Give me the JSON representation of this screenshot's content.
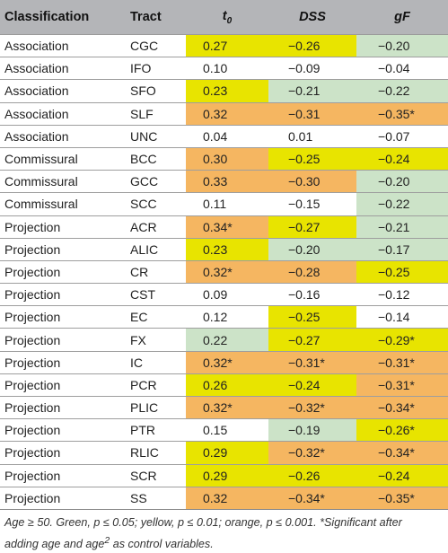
{
  "table": {
    "headers": [
      "Classification",
      "Tract",
      "t",
      "DSS",
      "gF"
    ],
    "header_t_subscript": "0",
    "rows": [
      {
        "classification": "Association",
        "tract": "CGC",
        "t0": "0.27",
        "t0_color": "yellow",
        "dss": "−0.26",
        "dss_color": "yellow",
        "gf": "−0.20",
        "gf_color": "green"
      },
      {
        "classification": "Association",
        "tract": "IFO",
        "t0": "0.10",
        "t0_color": "none",
        "dss": "−0.09",
        "dss_color": "none",
        "gf": "−0.04",
        "gf_color": "none"
      },
      {
        "classification": "Association",
        "tract": "SFO",
        "t0": "0.23",
        "t0_color": "yellow",
        "dss": "−0.21",
        "dss_color": "green",
        "gf": "−0.22",
        "gf_color": "green"
      },
      {
        "classification": "Association",
        "tract": "SLF",
        "t0": "0.32",
        "t0_color": "orange",
        "dss": "−0.31",
        "dss_color": "orange",
        "gf": "−0.35*",
        "gf_color": "orange"
      },
      {
        "classification": "Association",
        "tract": "UNC",
        "t0": "0.04",
        "t0_color": "none",
        "dss": "0.01",
        "dss_color": "none",
        "gf": "−0.07",
        "gf_color": "none"
      },
      {
        "classification": "Commissural",
        "tract": "BCC",
        "t0": "0.30",
        "t0_color": "orange",
        "dss": "−0.25",
        "dss_color": "yellow",
        "gf": "−0.24",
        "gf_color": "yellow"
      },
      {
        "classification": "Commissural",
        "tract": "GCC",
        "t0": "0.33",
        "t0_color": "orange",
        "dss": "−0.30",
        "dss_color": "orange",
        "gf": "−0.20",
        "gf_color": "green"
      },
      {
        "classification": "Commissural",
        "tract": "SCC",
        "t0": "0.11",
        "t0_color": "none",
        "dss": "−0.15",
        "dss_color": "none",
        "gf": "−0.22",
        "gf_color": "green"
      },
      {
        "classification": "Projection",
        "tract": "ACR",
        "t0": "0.34*",
        "t0_color": "orange",
        "dss": "−0.27",
        "dss_color": "yellow",
        "gf": "−0.21",
        "gf_color": "green"
      },
      {
        "classification": "Projection",
        "tract": "ALIC",
        "t0": "0.23",
        "t0_color": "yellow",
        "dss": "−0.20",
        "dss_color": "green",
        "gf": "−0.17",
        "gf_color": "green"
      },
      {
        "classification": "Projection",
        "tract": "CR",
        "t0": "0.32*",
        "t0_color": "orange",
        "dss": "−0.28",
        "dss_color": "orange",
        "gf": "−0.25",
        "gf_color": "yellow"
      },
      {
        "classification": "Projection",
        "tract": "CST",
        "t0": "0.09",
        "t0_color": "none",
        "dss": "−0.16",
        "dss_color": "none",
        "gf": "−0.12",
        "gf_color": "none"
      },
      {
        "classification": "Projection",
        "tract": "EC",
        "t0": "0.12",
        "t0_color": "none",
        "dss": "−0.25",
        "dss_color": "yellow",
        "gf": "−0.14",
        "gf_color": "none"
      },
      {
        "classification": "Projection",
        "tract": "FX",
        "t0": "0.22",
        "t0_color": "green",
        "dss": "−0.27",
        "dss_color": "yellow",
        "gf": "−0.29*",
        "gf_color": "yellow"
      },
      {
        "classification": "Projection",
        "tract": "IC",
        "t0": "0.32*",
        "t0_color": "orange",
        "dss": "−0.31*",
        "dss_color": "orange",
        "gf": "−0.31*",
        "gf_color": "orange"
      },
      {
        "classification": "Projection",
        "tract": "PCR",
        "t0": "0.26",
        "t0_color": "yellow",
        "dss": "−0.24",
        "dss_color": "yellow",
        "gf": "−0.31*",
        "gf_color": "orange"
      },
      {
        "classification": "Projection",
        "tract": "PLIC",
        "t0": "0.32*",
        "t0_color": "orange",
        "dss": "−0.32*",
        "dss_color": "orange",
        "gf": "−0.34*",
        "gf_color": "orange"
      },
      {
        "classification": "Projection",
        "tract": "PTR",
        "t0": "0.15",
        "t0_color": "none",
        "dss": "−0.19",
        "dss_color": "green",
        "gf": "−0.26*",
        "gf_color": "yellow"
      },
      {
        "classification": "Projection",
        "tract": "RLIC",
        "t0": "0.29",
        "t0_color": "yellow",
        "dss": "−0.32*",
        "dss_color": "orange",
        "gf": "−0.34*",
        "gf_color": "orange"
      },
      {
        "classification": "Projection",
        "tract": "SCR",
        "t0": "0.29",
        "t0_color": "yellow",
        "dss": "−0.26",
        "dss_color": "yellow",
        "gf": "−0.24",
        "gf_color": "yellow"
      },
      {
        "classification": "Projection",
        "tract": "SS",
        "t0": "0.32",
        "t0_color": "orange",
        "dss": "−0.34*",
        "dss_color": "orange",
        "gf": "−0.35*",
        "gf_color": "orange"
      }
    ]
  },
  "colors": {
    "header_bg": "#b4b5b8",
    "green": "#cce3c8",
    "yellow": "#e8e400",
    "orange": "#f5b661"
  },
  "footnote": {
    "line1": "Age ≥ 50. Green, p ≤ 0.05; yellow, p ≤ 0.01; orange, p ≤ 0.001. *Significant after",
    "line2_prefix": "adding age and age",
    "line2_sup": "2",
    "line2_suffix": " as control variables."
  }
}
